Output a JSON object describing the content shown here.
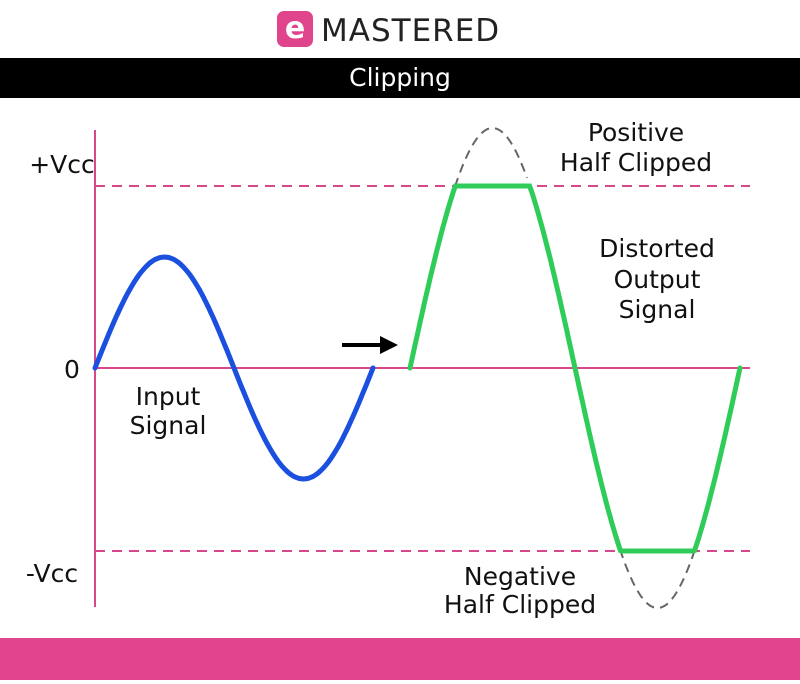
{
  "header": {
    "logo": "MASTERED",
    "title": "Clipping"
  },
  "axis_labels": {
    "positive": "+Vcc",
    "zero": "0",
    "negative": "-Vcc"
  },
  "labels": {
    "input": [
      "Input",
      "Signal"
    ],
    "positive_clipped": [
      "Positive",
      "Half Clipped"
    ],
    "output": [
      "Distorted",
      "Output",
      "Signal"
    ],
    "negative_clipped": [
      "Negative",
      "Half Clipped"
    ]
  }
}
